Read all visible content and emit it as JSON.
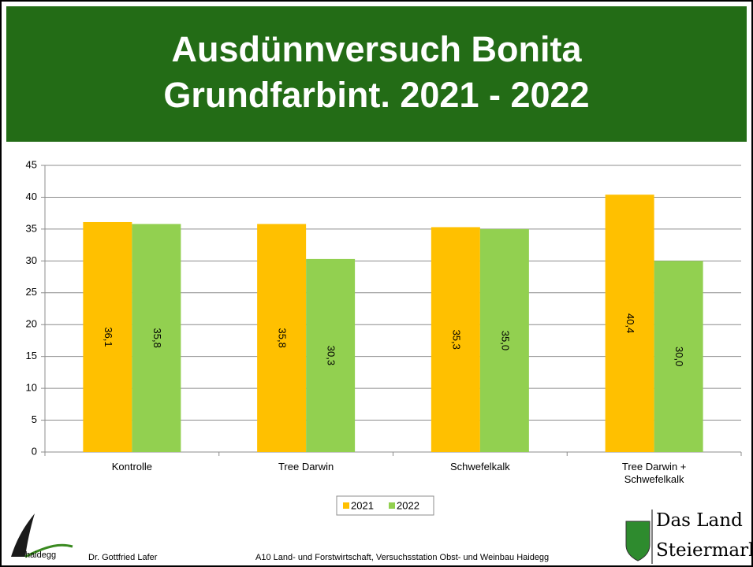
{
  "header": {
    "title_lines": [
      "Ausdünnversuch Bonita",
      "Grundfarbint. 2021 - 2022"
    ]
  },
  "chart_data": {
    "type": "bar",
    "categories": [
      "Kontrolle",
      "Tree Darwin",
      "Schwefelkalk",
      "Tree Darwin + Schwefelkalk"
    ],
    "series": [
      {
        "name": "2021",
        "color": "#ffc000",
        "values": [
          36.1,
          35.8,
          35.3,
          40.4
        ],
        "value_labels": [
          "36,1",
          "35,8",
          "35,3",
          "40,4"
        ]
      },
      {
        "name": "2022",
        "color": "#92d050",
        "values": [
          35.8,
          30.3,
          35.0,
          30.0
        ],
        "value_labels": [
          "35,8",
          "30,3",
          "35,0",
          "30,0"
        ]
      }
    ],
    "ylim": [
      0,
      45
    ],
    "yticks": [
      0,
      5,
      10,
      15,
      20,
      25,
      30,
      35,
      40,
      45
    ],
    "grid": true,
    "legend": "bottom"
  },
  "footer": {
    "logo_text": "haidegg",
    "author": "Dr. Gottfried Lafer",
    "institution": "A10 Land- und Forstwirtschaft, Versuchsstation Obst- und Weinbau Haidegg",
    "brand_lines": [
      "Das Land",
      "Steiermark"
    ]
  }
}
